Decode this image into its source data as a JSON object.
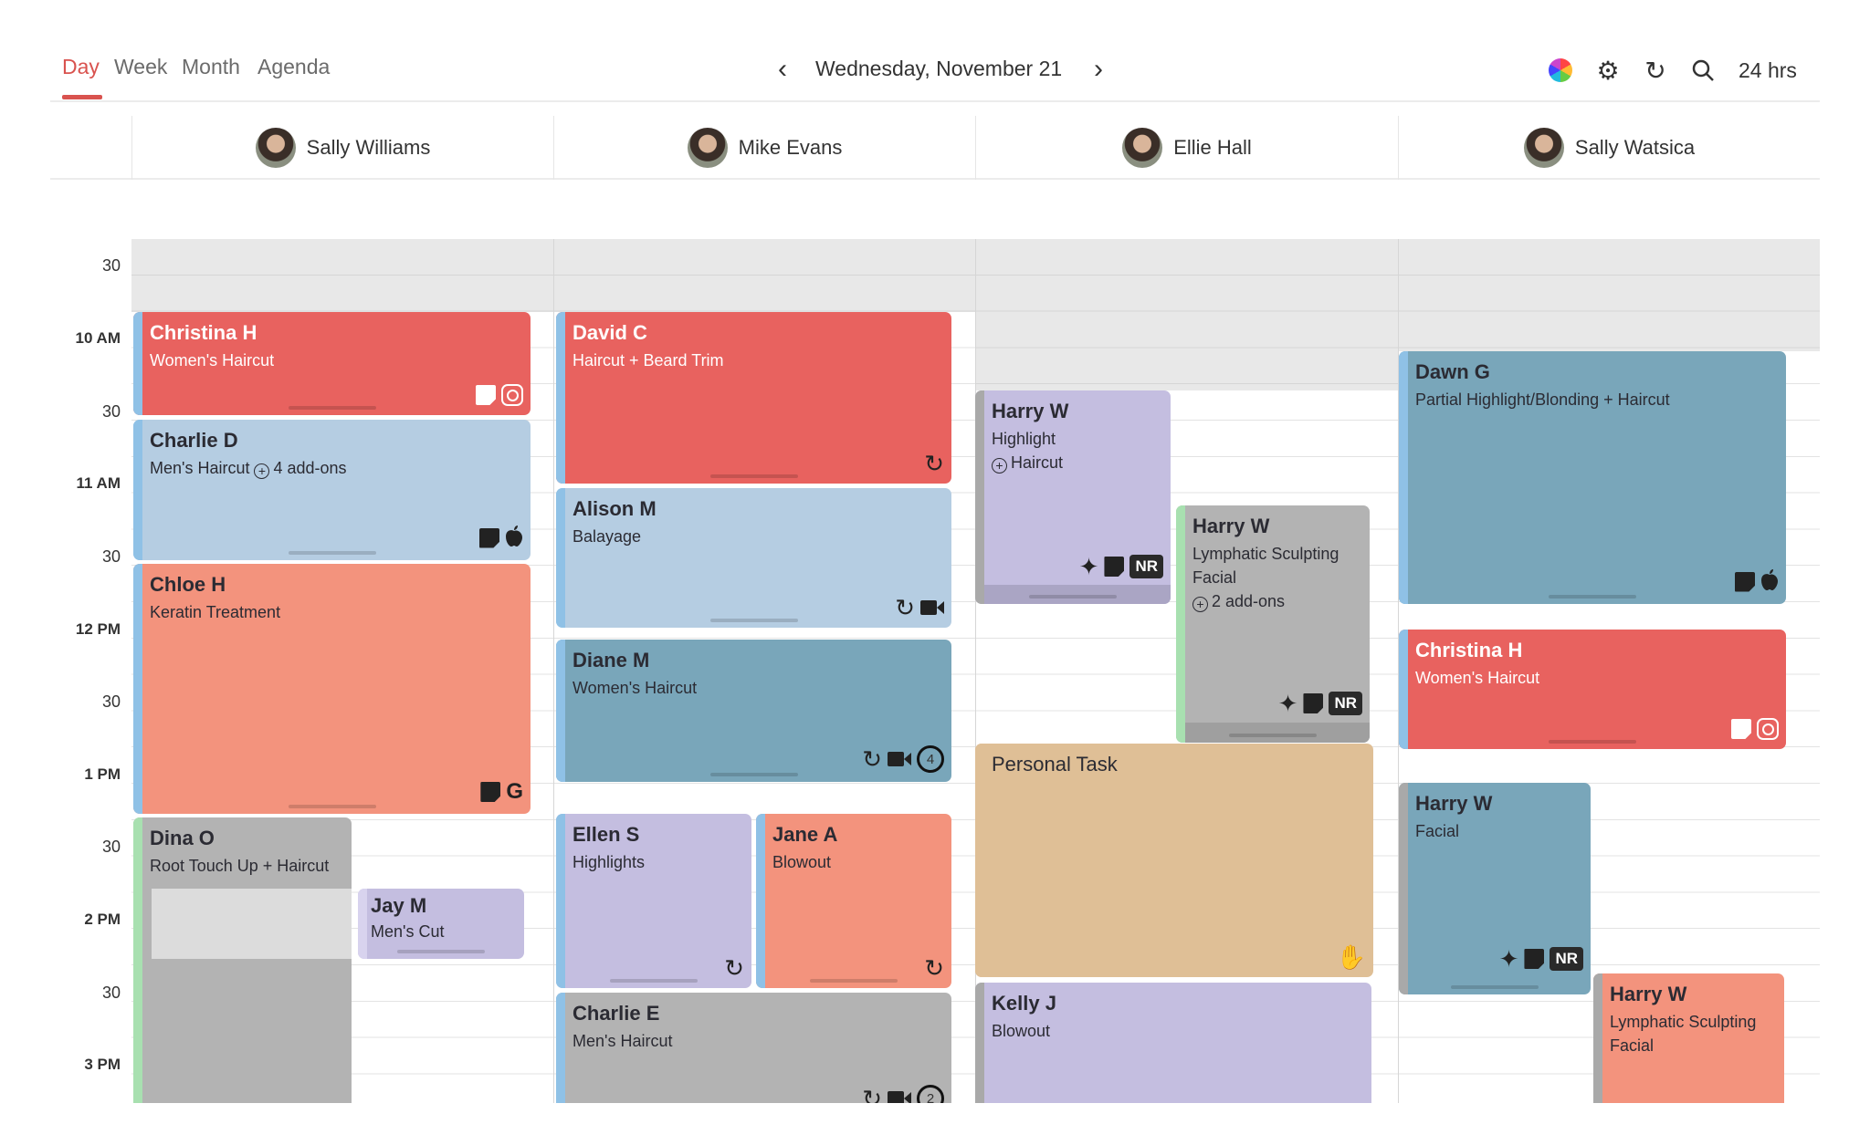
{
  "tabs": [
    {
      "label": "Day",
      "active": true
    },
    {
      "label": "Week"
    },
    {
      "label": "Month"
    },
    {
      "label": "Agenda"
    }
  ],
  "date_label": "Wednesday, November 21",
  "toolbar": {
    "icons": [
      "color-wheel-icon",
      "gear-icon",
      "refresh-icon",
      "search-icon"
    ],
    "hours_label": "24 hrs"
  },
  "time_labels": [
    "30",
    "10 AM",
    "30",
    "11 AM",
    "30",
    "12 PM",
    "30",
    "1 PM",
    "30",
    "2 PM",
    "30",
    "3 PM"
  ],
  "colors": {
    "accent": "#d9534f",
    "red": "#e8625f",
    "light_blue": "#b5cde2",
    "salmon": "#f3937d",
    "gray": "#b3b3b3",
    "lavender": "#c4bee0",
    "teal": "#79a6ba",
    "tan": "#dfbf96"
  },
  "columns": [
    {
      "name": "Sally Williams",
      "events": [
        {
          "client": "Christina H",
          "service": "Women's Haircut",
          "icons": [
            "note",
            "instagram"
          ]
        },
        {
          "client": "Charlie D",
          "service": "Men's Haircut",
          "addon": "4 add-ons",
          "icons": [
            "note",
            "apple"
          ]
        },
        {
          "client": "Chloe H",
          "service": "Keratin Treatment",
          "icons": [
            "note",
            "google"
          ]
        },
        {
          "client": "Dina O",
          "service": "Root Touch Up + Haircut",
          "icons": []
        },
        {
          "client": "Jay M",
          "service": "Men's Cut",
          "icons": []
        }
      ]
    },
    {
      "name": "Mike Evans",
      "events": [
        {
          "client": "David C",
          "service": "Haircut + Beard Trim",
          "icons": [
            "refresh"
          ]
        },
        {
          "client": "Alison M",
          "service": "Balayage",
          "icons": [
            "refresh",
            "video"
          ]
        },
        {
          "client": "Diane M",
          "service": "Women's Haircut",
          "icons": [
            "refresh",
            "video",
            "count:4"
          ]
        },
        {
          "client": "Ellen S",
          "service": "Highlights",
          "icons": [
            "refresh"
          ]
        },
        {
          "client": "Jane A",
          "service": "Blowout",
          "icons": [
            "refresh"
          ]
        },
        {
          "client": "Charlie E",
          "service": "Men's Haircut",
          "icons": [
            "refresh",
            "video",
            "count:2"
          ]
        }
      ]
    },
    {
      "name": "Ellie Hall",
      "events": [
        {
          "client": "Harry W",
          "service": "Highlight",
          "addon": "Haircut",
          "icons": [
            "sparkle",
            "note",
            "NR"
          ]
        },
        {
          "client": "Harry W",
          "service": "Lymphatic Sculpting Facial",
          "addon": "2 add-ons",
          "icons": [
            "sparkle",
            "note",
            "NR"
          ]
        },
        {
          "client": "Personal Task",
          "service": "",
          "icons": [
            "hand"
          ]
        },
        {
          "client": "Kelly J",
          "service": "Blowout",
          "icons": []
        }
      ]
    },
    {
      "name": "Sally Watsica",
      "events": [
        {
          "client": "Dawn G",
          "service": "Partial Highlight/Blonding + Haircut",
          "icons": [
            "note",
            "apple"
          ]
        },
        {
          "client": "Christina H",
          "service": "Women's Haircut",
          "icons": [
            "note",
            "instagram"
          ]
        },
        {
          "client": "Harry W",
          "service": "Facial",
          "icons": [
            "sparkle",
            "note",
            "NR"
          ]
        },
        {
          "client": "Harry W",
          "service": "Lymphatic Sculpting Facial",
          "icons": []
        }
      ]
    }
  ]
}
